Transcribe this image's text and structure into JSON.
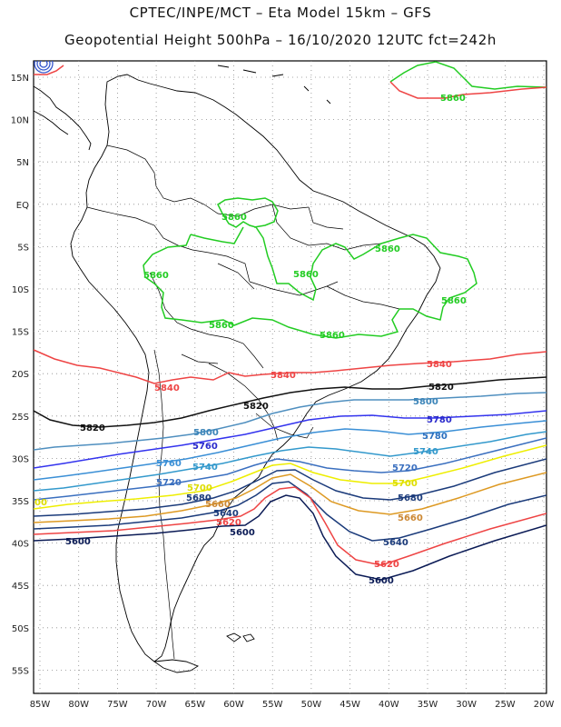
{
  "title": {
    "line1": "CPTEC/INPE/MCT –  Eta Model 15km – GFS",
    "line2": "Geopotential Height 500hPa – 16/10/2020 12UTC fct=242h"
  },
  "axes": {
    "lat_labels": [
      "15N",
      "10N",
      "5N",
      "EQ",
      "5S",
      "10S",
      "15S",
      "20S",
      "25S",
      "30S",
      "35S",
      "40S",
      "45S",
      "50S",
      "55S"
    ],
    "lon_labels": [
      "85W",
      "80W",
      "75W",
      "70W",
      "65W",
      "60W",
      "55W",
      "50W",
      "45W",
      "40W",
      "35W",
      "30W",
      "25W",
      "20W"
    ]
  },
  "colors": {
    "c5860": "#22cc22",
    "c5840": "#ee4444",
    "c5820": "#111111",
    "c5800": "#4f8fbf",
    "c5780": "#3333ee",
    "c5760": "#3a8fd6",
    "c5740": "#3399cc",
    "c5720": "#3a6fbf",
    "c5700": "#eeee00",
    "c5680": "#dd9922",
    "c5660": "#cc8833",
    "c5640": "#1a3a7a",
    "c5620": "#ee4444",
    "c5600": "#0a1a55"
  },
  "contour_labels": [
    {
      "id": "l5860a",
      "text": "5860",
      "color": "#22cc22"
    },
    {
      "id": "l5860b",
      "text": "5860",
      "color": "#22cc22"
    },
    {
      "id": "l5860c",
      "text": "5860",
      "color": "#22cc22"
    },
    {
      "id": "l5860d",
      "text": "5860",
      "color": "#22cc22"
    },
    {
      "id": "l5860e",
      "text": "5860",
      "color": "#22cc22"
    },
    {
      "id": "l5860f",
      "text": "5860",
      "color": "#22cc22"
    },
    {
      "id": "l5860g",
      "text": "5860",
      "color": "#22cc22"
    },
    {
      "id": "l5860h",
      "text": "5860",
      "color": "#22cc22"
    },
    {
      "id": "l5840a",
      "text": "5840",
      "color": "#ee4444"
    },
    {
      "id": "l5840b",
      "text": "5840",
      "color": "#ee4444"
    },
    {
      "id": "l5840c",
      "text": "5840",
      "color": "#ee4444"
    },
    {
      "id": "l5820a",
      "text": "5820",
      "color": "#111111"
    },
    {
      "id": "l5820b",
      "text": "5820",
      "color": "#111111"
    },
    {
      "id": "l5820c",
      "text": "5820",
      "color": "#111111"
    },
    {
      "id": "l5800a",
      "text": "5800",
      "color": "#3b84b8"
    },
    {
      "id": "l5800b",
      "text": "5800",
      "color": "#3b84b8"
    },
    {
      "id": "l5780a",
      "text": "5780",
      "color": "#2a2acc"
    },
    {
      "id": "l5780b",
      "text": "5780",
      "color": "#2a6fbf"
    },
    {
      "id": "l5760a",
      "text": "5760",
      "color": "#2a2acc"
    },
    {
      "id": "l5760b",
      "text": "5760",
      "color": "#3a8fd6"
    },
    {
      "id": "l5740a",
      "text": "5740",
      "color": "#3399cc"
    },
    {
      "id": "l5740b",
      "text": "5740",
      "color": "#3399cc"
    },
    {
      "id": "l5720a",
      "text": "5720",
      "color": "#3a6fbf"
    },
    {
      "id": "l5720b",
      "text": "5720",
      "color": "#3a6fbf"
    },
    {
      "id": "l5700a",
      "text": "5700",
      "color": "#dddd00"
    },
    {
      "id": "l5700b",
      "text": "5700",
      "color": "#dddd00"
    },
    {
      "id": "l5700c",
      "text": "00",
      "color": "#dddd00"
    },
    {
      "id": "l5680a",
      "text": "5680",
      "color": "#1a3a7a"
    },
    {
      "id": "l5680b",
      "text": "5680",
      "color": "#1a3a7a"
    },
    {
      "id": "l5660a",
      "text": "5660",
      "color": "#cc8833"
    },
    {
      "id": "l5660b",
      "text": "5660",
      "color": "#cc8833"
    },
    {
      "id": "l5640a",
      "text": "5640",
      "color": "#1a3a7a"
    },
    {
      "id": "l5640b",
      "text": "5640",
      "color": "#1a3a7a"
    },
    {
      "id": "l5620a",
      "text": "5620",
      "color": "#ee4444"
    },
    {
      "id": "l5620b",
      "text": "5620",
      "color": "#ee4444"
    },
    {
      "id": "l5600a",
      "text": "5600",
      "color": "#0a1a55"
    },
    {
      "id": "l5600b",
      "text": "5600",
      "color": "#0a1a55"
    },
    {
      "id": "l5600c",
      "text": "5600",
      "color": "#0a1a55"
    }
  ]
}
